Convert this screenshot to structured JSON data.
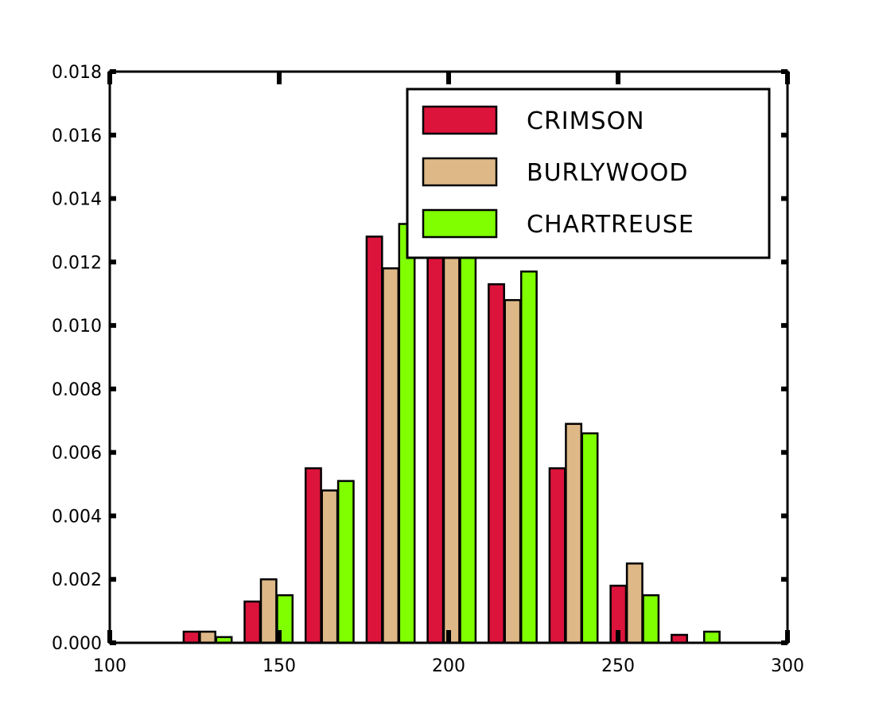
{
  "chart_data": {
    "type": "bar",
    "title": "",
    "xlabel": "",
    "ylabel": "",
    "xlim": [
      100,
      300
    ],
    "ylim": [
      0,
      0.018
    ],
    "xticks": [
      "100",
      "150",
      "200",
      "250",
      "300"
    ],
    "yticks": [
      "0.000",
      "0.002",
      "0.004",
      "0.006",
      "0.008",
      "0.010",
      "0.012",
      "0.014",
      "0.016",
      "0.018"
    ],
    "bin_width": 18,
    "categories": [
      129,
      147,
      165,
      183,
      201,
      219,
      237,
      255,
      273
    ],
    "series": [
      {
        "name": "CRIMSON",
        "color": "#dc143c",
        "values": [
          0.00035,
          0.0013,
          0.0055,
          0.0128,
          0.0128,
          0.0113,
          0.0055,
          0.0018,
          0.00025
        ]
      },
      {
        "name": "BURLYWOOD",
        "color": "#deb887",
        "values": [
          0.00035,
          0.002,
          0.0048,
          0.0118,
          0.0138,
          0.0108,
          0.0069,
          0.0025,
          0.0
        ]
      },
      {
        "name": "CHARTREUSE",
        "color": "#7fff00",
        "values": [
          0.00018,
          0.0015,
          0.0051,
          0.0132,
          0.0136,
          0.0117,
          0.0066,
          0.0015,
          0.00035
        ]
      }
    ],
    "legend_position": "top-right",
    "grid": false
  }
}
